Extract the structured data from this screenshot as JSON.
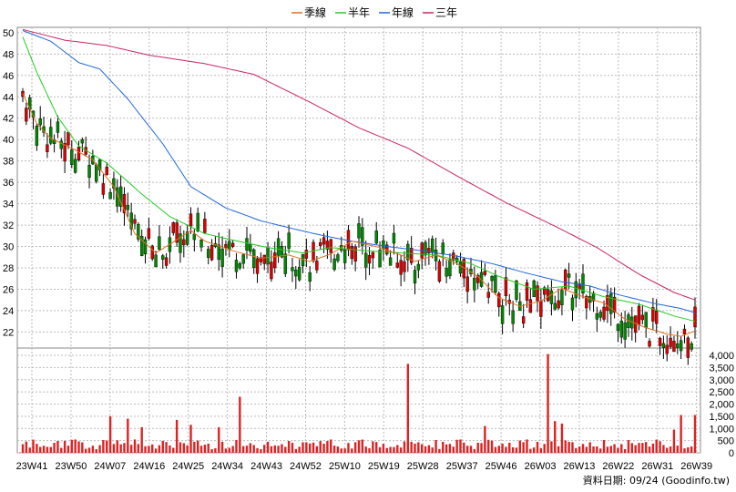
{
  "chart_data": {
    "type": "candlestick+bar",
    "legend": [
      {
        "name": "季線",
        "color": "#e07020"
      },
      {
        "name": "半年",
        "color": "#22cc22"
      },
      {
        "name": "年線",
        "color": "#2266dd"
      },
      {
        "name": "三年",
        "color": "#cc2266"
      }
    ],
    "price_axis": {
      "ticks": [
        22,
        24,
        26,
        28,
        30,
        32,
        34,
        36,
        38,
        40,
        42,
        44,
        46,
        48,
        50
      ],
      "ylim": [
        20.5,
        50.5
      ]
    },
    "volume_axis": {
      "ticks": [
        "0",
        "500",
        "1,000",
        "1,500",
        "2,000",
        "2,500",
        "3,000",
        "3,500",
        "4,000"
      ],
      "ylim": [
        0,
        4000
      ]
    },
    "x_labels": [
      "23W41",
      "23W50",
      "24W07",
      "24W16",
      "24W25",
      "24W34",
      "24W43",
      "24W52",
      "25W10",
      "25W19",
      "25W28",
      "25W37",
      "25W46",
      "26W03",
      "26W13",
      "26W22",
      "26W31",
      "26W39"
    ],
    "quarter_line": [
      [
        0,
        44.3
      ],
      [
        4,
        41.5
      ],
      [
        8,
        40.1
      ],
      [
        14,
        39.2
      ],
      [
        20,
        38.1
      ],
      [
        26,
        35.6
      ],
      [
        32,
        31.2
      ],
      [
        38,
        29.4
      ],
      [
        42,
        30.2
      ],
      [
        48,
        31.5
      ],
      [
        52,
        30.5
      ],
      [
        60,
        29.6
      ],
      [
        68,
        28.9
      ],
      [
        76,
        29.2
      ],
      [
        82,
        28.6
      ],
      [
        88,
        29.3
      ],
      [
        94,
        30.5
      ],
      [
        102,
        29.9
      ],
      [
        108,
        29.2
      ],
      [
        112,
        28.6
      ],
      [
        118,
        29.2
      ],
      [
        124,
        28.4
      ],
      [
        130,
        27.2
      ],
      [
        136,
        25.2
      ],
      [
        142,
        24.4
      ],
      [
        148,
        24.9
      ],
      [
        154,
        26.1
      ],
      [
        160,
        25.3
      ],
      [
        166,
        24.7
      ],
      [
        172,
        23.2
      ],
      [
        178,
        22.4
      ],
      [
        184,
        21.8
      ],
      [
        188,
        21.6
      ],
      [
        192,
        22.1
      ]
    ],
    "halfyear_line": [
      [
        0,
        49.6
      ],
      [
        4,
        46.3
      ],
      [
        10,
        42.1
      ],
      [
        16,
        39.4
      ],
      [
        24,
        37.8
      ],
      [
        34,
        34.9
      ],
      [
        42,
        32.8
      ],
      [
        52,
        31.2
      ],
      [
        60,
        30.6
      ],
      [
        70,
        29.9
      ],
      [
        80,
        29.4
      ],
      [
        88,
        29.9
      ],
      [
        98,
        29.6
      ],
      [
        108,
        29.4
      ],
      [
        118,
        29.2
      ],
      [
        128,
        28.4
      ],
      [
        136,
        27.2
      ],
      [
        146,
        26.0
      ],
      [
        156,
        26.3
      ],
      [
        166,
        25.3
      ],
      [
        176,
        24.6
      ],
      [
        186,
        23.5
      ],
      [
        192,
        23.0
      ]
    ],
    "year_line": [
      [
        0,
        50.2
      ],
      [
        8,
        49.2
      ],
      [
        16,
        47.2
      ],
      [
        22,
        46.6
      ],
      [
        30,
        43.8
      ],
      [
        40,
        39.6
      ],
      [
        48,
        35.6
      ],
      [
        58,
        33.6
      ],
      [
        68,
        32.4
      ],
      [
        78,
        31.6
      ],
      [
        86,
        31.0
      ],
      [
        94,
        30.5
      ],
      [
        104,
        30.0
      ],
      [
        114,
        29.6
      ],
      [
        124,
        29.1
      ],
      [
        134,
        28.4
      ],
      [
        144,
        27.5
      ],
      [
        154,
        26.7
      ],
      [
        162,
        26.3
      ],
      [
        170,
        25.5
      ],
      [
        180,
        24.7
      ],
      [
        188,
        24.2
      ],
      [
        192,
        23.8
      ]
    ],
    "threeyear_line": [
      [
        0,
        50.3
      ],
      [
        12,
        49.3
      ],
      [
        24,
        48.8
      ],
      [
        36,
        47.9
      ],
      [
        52,
        47.1
      ],
      [
        66,
        46.1
      ],
      [
        82,
        43.5
      ],
      [
        96,
        41.1
      ],
      [
        110,
        39.2
      ],
      [
        124,
        36.6
      ],
      [
        138,
        34.1
      ],
      [
        152,
        31.9
      ],
      [
        164,
        29.9
      ],
      [
        176,
        27.4
      ],
      [
        186,
        25.7
      ],
      [
        192,
        25.0
      ]
    ],
    "weeks": 193,
    "price_note": "weekly OHLC candles approx. 193 weeks from 23W41 to 26W39; last close approx. 24.5",
    "footer": "資料日期: 09/24  (Goodinfo.tw)"
  }
}
